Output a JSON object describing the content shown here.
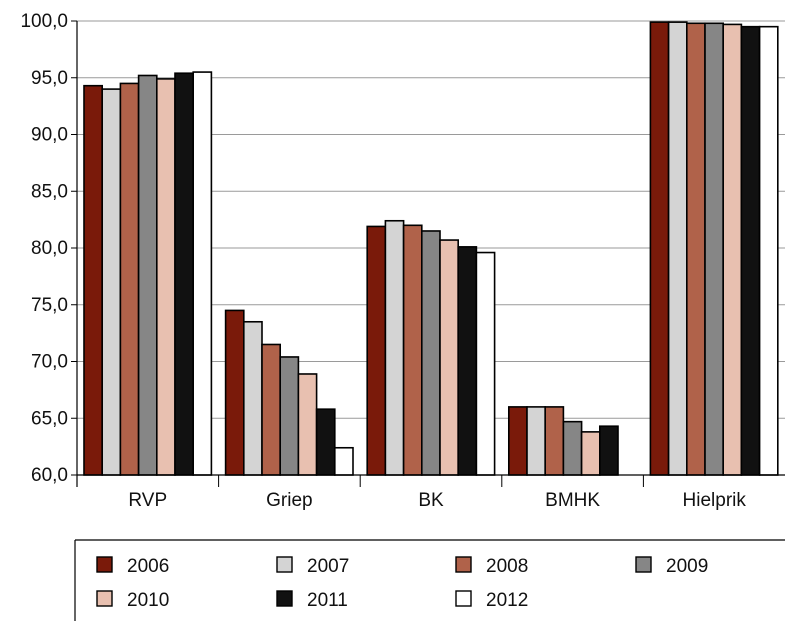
{
  "chart_data": {
    "type": "bar",
    "categories": [
      "RVP",
      "Griep",
      "BK",
      "BMHK",
      "Hielprik"
    ],
    "ylim": [
      60,
      100
    ],
    "yticks": [
      "60,0",
      "65,0",
      "70,0",
      "75,0",
      "80,0",
      "85,0",
      "90,0",
      "95,0",
      "100,0"
    ],
    "grid": true,
    "legend_position": "bottom",
    "series": [
      {
        "name": "2006",
        "color": "#7a1a0a",
        "values": [
          94.3,
          74.5,
          81.9,
          66.0,
          99.9
        ]
      },
      {
        "name": "2007",
        "color": "#d4d4d4",
        "values": [
          94.0,
          73.5,
          82.4,
          66.0,
          99.9
        ]
      },
      {
        "name": "2008",
        "color": "#b0624a",
        "values": [
          94.5,
          71.5,
          82.0,
          66.0,
          99.8
        ]
      },
      {
        "name": "2009",
        "color": "#868686",
        "values": [
          95.2,
          70.4,
          81.5,
          64.7,
          99.8
        ]
      },
      {
        "name": "2010",
        "color": "#e8c0b0",
        "values": [
          94.9,
          68.9,
          80.7,
          63.8,
          99.7
        ]
      },
      {
        "name": "2011",
        "color": "#111111",
        "values": [
          95.4,
          65.8,
          80.1,
          64.3,
          99.5
        ]
      },
      {
        "name": "2012",
        "color": "#ffffff",
        "values": [
          95.5,
          62.4,
          79.6,
          null,
          99.5
        ]
      }
    ]
  }
}
